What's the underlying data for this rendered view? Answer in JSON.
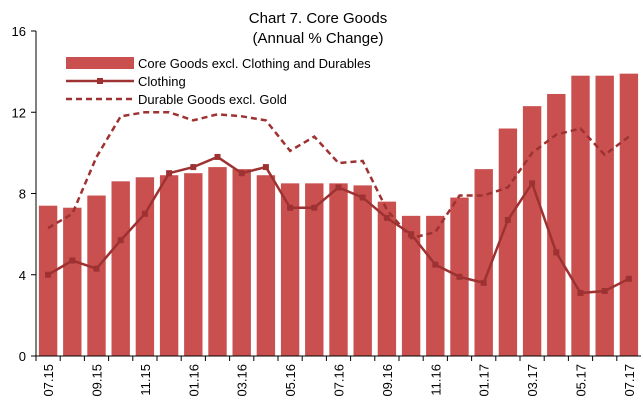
{
  "chart_data": {
    "type": "bar",
    "title": [
      "Chart 7. Core Goods",
      "(Annual % Change)"
    ],
    "categories": [
      "07.15",
      null,
      "09.15",
      null,
      "11.15",
      null,
      "01.16",
      null,
      "03.16",
      null,
      "05.16",
      null,
      "07.16",
      null,
      "09.16",
      null,
      "11.16",
      null,
      "01.17",
      null,
      "03.17",
      null,
      "05.17",
      null,
      "07.17"
    ],
    "series": [
      {
        "name": "Core Goods excl. Clothing and Durables",
        "type": "bar",
        "color": "#c9504f",
        "values": [
          7.4,
          7.3,
          7.9,
          8.6,
          8.8,
          8.9,
          9.0,
          9.3,
          9.2,
          8.9,
          8.5,
          8.5,
          8.5,
          8.4,
          7.6,
          6.9,
          6.9,
          7.8,
          9.2,
          11.2,
          12.3,
          12.9,
          13.8,
          13.8,
          13.9
        ]
      },
      {
        "name": "Clothing",
        "type": "line",
        "color": "#9e3232",
        "marker": "square",
        "values": [
          4.0,
          4.7,
          4.3,
          5.7,
          7.0,
          9.0,
          9.3,
          9.8,
          9.0,
          9.3,
          7.3,
          7.3,
          8.3,
          7.8,
          6.8,
          6.0,
          4.5,
          3.9,
          3.6,
          6.7,
          8.5,
          5.1,
          3.1,
          3.2,
          3.8
        ]
      },
      {
        "name": "Durable Goods excl. Gold",
        "type": "line",
        "color": "#9e3232",
        "dashed": true,
        "values": [
          6.3,
          7.0,
          9.8,
          11.8,
          12.0,
          12.0,
          11.6,
          11.9,
          11.8,
          11.6,
          10.1,
          10.8,
          9.5,
          9.6,
          7.2,
          5.8,
          6.1,
          7.9,
          7.9,
          8.3,
          10.0,
          10.9,
          11.2,
          9.9,
          10.8
        ]
      }
    ],
    "ylim": [
      0,
      16
    ],
    "yticks": [
      0,
      4,
      8,
      12,
      16
    ],
    "legend": "top-left"
  }
}
